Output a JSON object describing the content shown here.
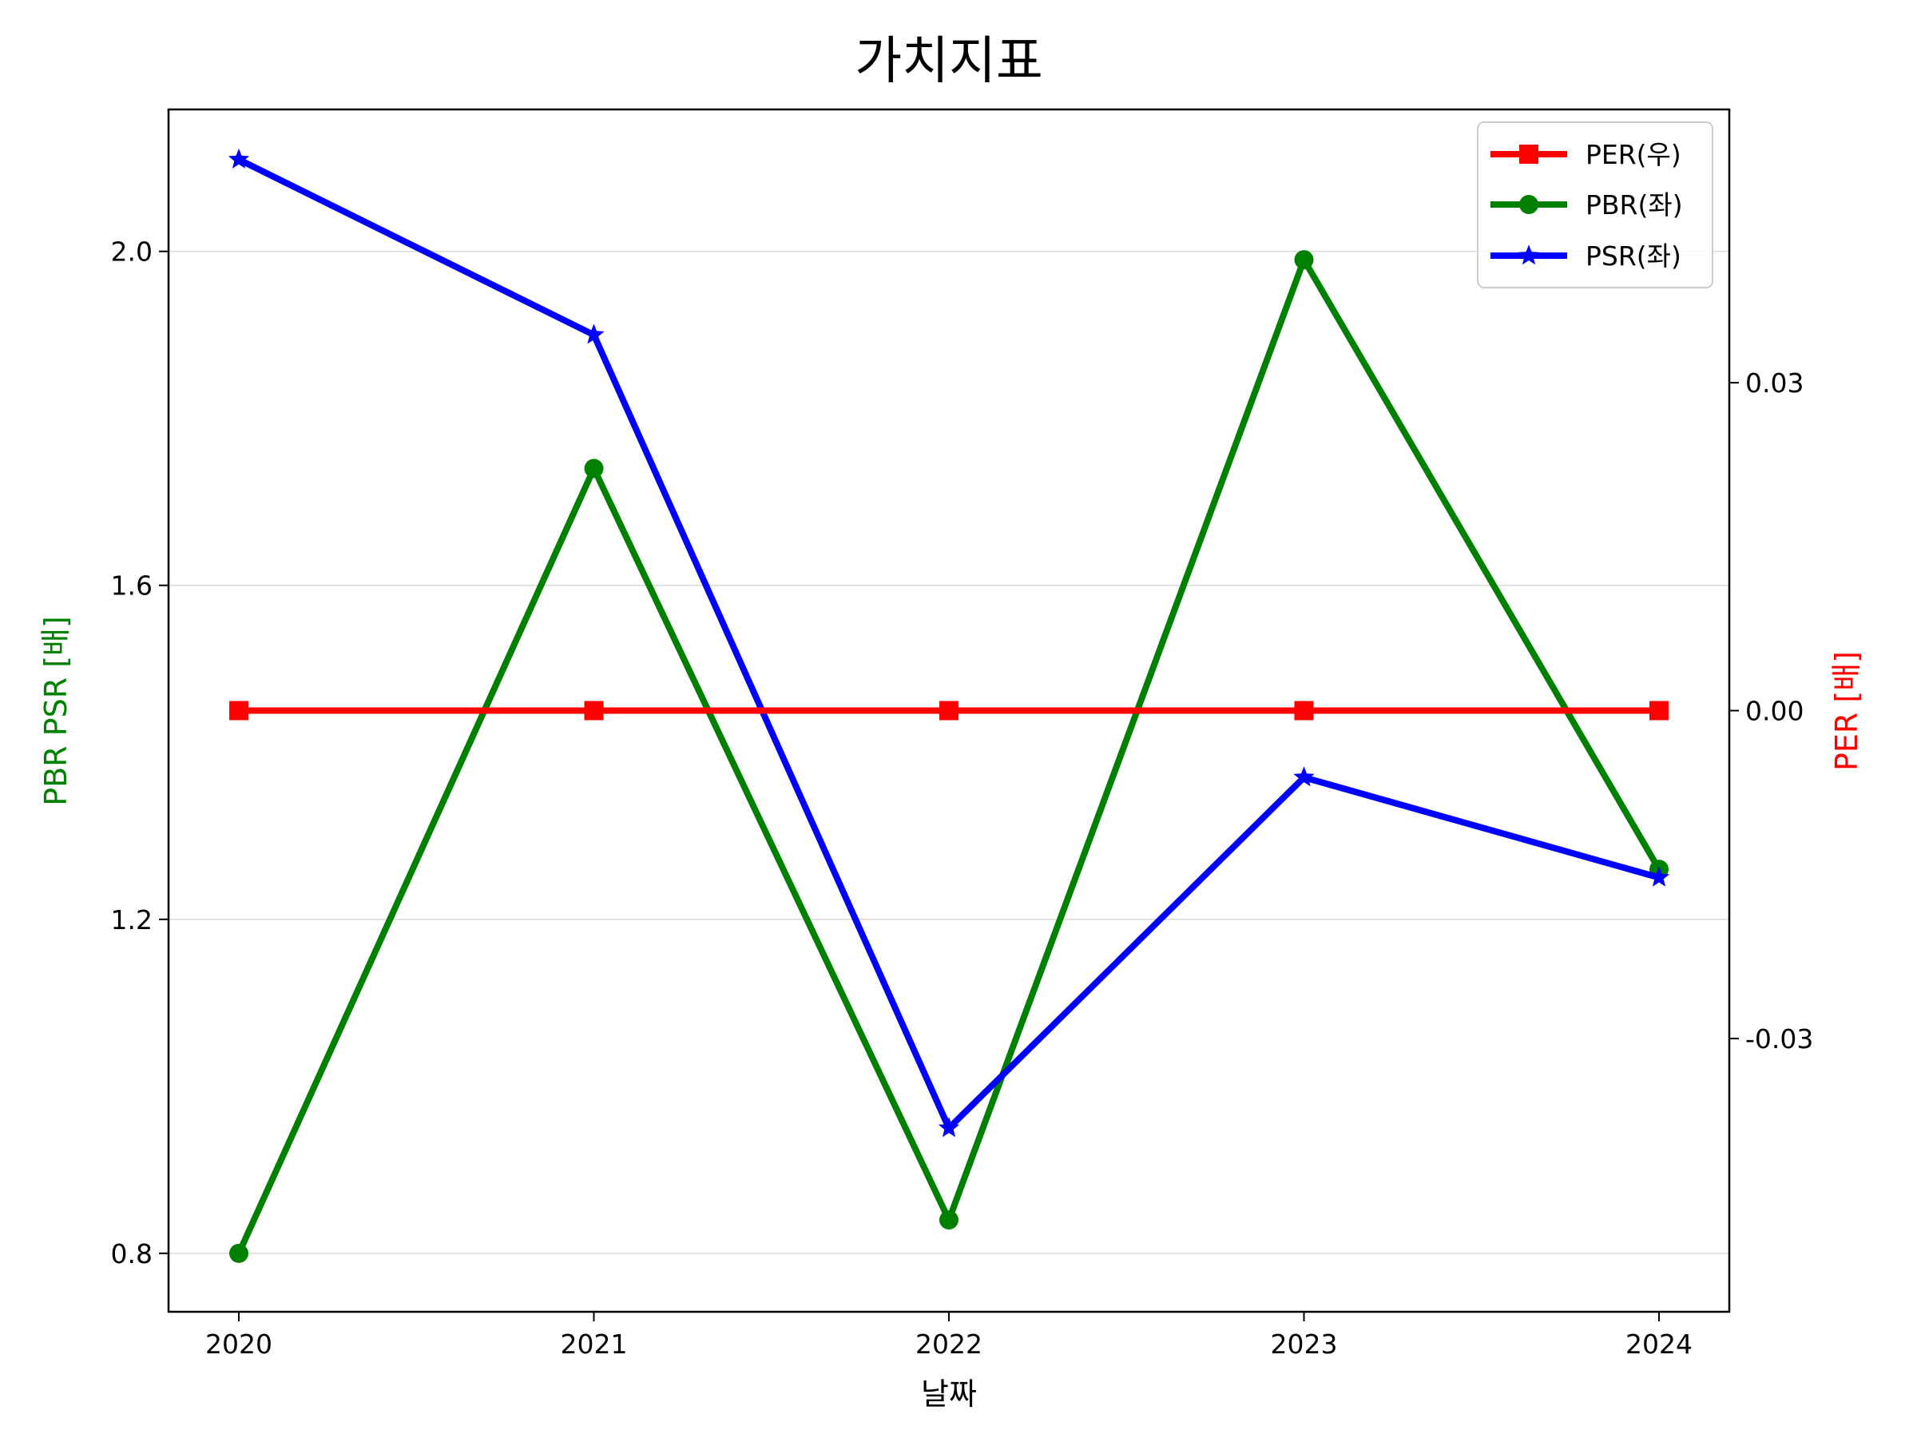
{
  "chart_data": {
    "type": "line",
    "title": "가치지표",
    "xlabel": "날짜",
    "ylabel_left": "PBR PSR [배]",
    "ylabel_right": "PER [배]",
    "categories": [
      "2020",
      "2021",
      "2022",
      "2023",
      "2024"
    ],
    "left_axis": {
      "ylim": [
        0.73,
        2.17
      ],
      "ticks": [
        0.8,
        1.2,
        1.6,
        2.0
      ],
      "tick_labels": [
        "0.8",
        "1.2",
        "1.6",
        "2.0"
      ],
      "label_color": "#008000"
    },
    "right_axis": {
      "ylim": [
        -0.055,
        0.055
      ],
      "ticks": [
        -0.03,
        0.0,
        0.03
      ],
      "tick_labels": [
        "-0.03",
        "0.00",
        "0.03"
      ],
      "label_color": "#ff0000"
    },
    "grid": "horizontal",
    "legend_position": "top-right",
    "series": [
      {
        "name": "PER(우)",
        "axis": "right",
        "color": "#ff0000",
        "marker": "square",
        "values": [
          0,
          0,
          0,
          0,
          0
        ]
      },
      {
        "name": "PBR(좌)",
        "axis": "left",
        "color": "#008000",
        "marker": "circle",
        "values": [
          0.8,
          1.74,
          0.84,
          1.99,
          1.26
        ]
      },
      {
        "name": "PSR(좌)",
        "axis": "left",
        "color": "#0000ff",
        "marker": "star",
        "values": [
          2.11,
          1.9,
          0.95,
          1.37,
          1.25
        ]
      }
    ]
  }
}
